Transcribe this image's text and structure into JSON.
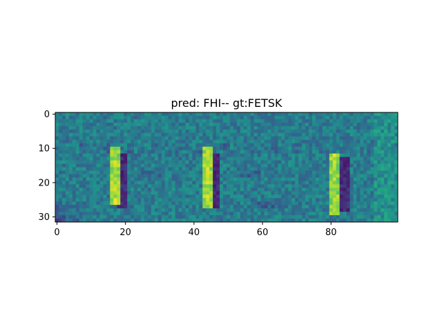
{
  "chart_data": {
    "type": "heatmap",
    "title": "pred: FHI-- gt:FETSK",
    "xlabel": "",
    "ylabel": "",
    "x_range": [
      0,
      100
    ],
    "y_range": [
      0,
      32
    ],
    "y_inverted": true,
    "x_ticks": [
      0,
      20,
      40,
      60,
      80
    ],
    "x_tick_labels": [
      "0",
      "20",
      "40",
      "60",
      "80"
    ],
    "y_ticks": [
      0,
      10,
      20,
      30
    ],
    "y_tick_labels": [
      "0",
      "10",
      "20",
      "30"
    ],
    "colormap": "viridis",
    "grid": false,
    "legend": "none",
    "bright_strokes": [
      {
        "x_start": 16,
        "x_end": 19,
        "y_start": 10,
        "y_end": 26
      },
      {
        "x_start": 43,
        "x_end": 46,
        "y_start": 10,
        "y_end": 27
      },
      {
        "x_start": 80,
        "x_end": 83,
        "y_start": 12,
        "y_end": 29
      }
    ],
    "dark_strokes": [
      {
        "x_start": 18,
        "x_end": 21,
        "y_start": 12,
        "y_end": 27
      },
      {
        "x_start": 45,
        "x_end": 48,
        "y_start": 12,
        "y_end": 27
      },
      {
        "x_start": 82,
        "x_end": 86,
        "y_start": 13,
        "y_end": 28
      }
    ]
  }
}
